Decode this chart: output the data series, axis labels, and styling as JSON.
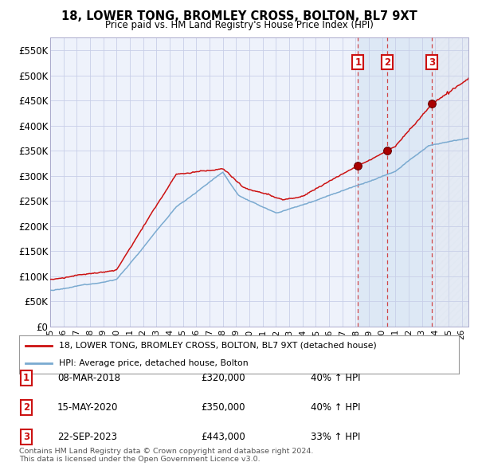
{
  "title": "18, LOWER TONG, BROMLEY CROSS, BOLTON, BL7 9XT",
  "subtitle": "Price paid vs. HM Land Registry's House Price Index (HPI)",
  "xlim_start": 1995.0,
  "xlim_end": 2026.5,
  "ylim": [
    0,
    575000
  ],
  "yticks": [
    0,
    50000,
    100000,
    150000,
    200000,
    250000,
    300000,
    350000,
    400000,
    450000,
    500000,
    550000
  ],
  "ytick_labels": [
    "£0",
    "£50K",
    "£100K",
    "£150K",
    "£200K",
    "£250K",
    "£300K",
    "£350K",
    "£400K",
    "£450K",
    "£500K",
    "£550K"
  ],
  "sale_dates": [
    2018.18,
    2020.37,
    2023.73
  ],
  "sale_prices": [
    320000,
    350000,
    443000
  ],
  "sale_labels": [
    "1",
    "2",
    "3"
  ],
  "sale_date_strs": [
    "08-MAR-2018",
    "15-MAY-2020",
    "22-SEP-2023"
  ],
  "sale_price_strs": [
    "£320,000",
    "£350,000",
    "£443,000"
  ],
  "sale_hpi_strs": [
    "40% ↑ HPI",
    "40% ↑ HPI",
    "33% ↑ HPI"
  ],
  "legend_line1": "18, LOWER TONG, BROMLEY CROSS, BOLTON, BL7 9XT (detached house)",
  "legend_line2": "HPI: Average price, detached house, Bolton",
  "footer1": "Contains HM Land Registry data © Crown copyright and database right 2024.",
  "footer2": "This data is licensed under the Open Government Licence v3.0.",
  "hpi_color": "#7aaad0",
  "price_color": "#cc1111",
  "bg_color": "#eef2fb",
  "grid_color": "#c8cfe8",
  "shade_color": "#dde8f5"
}
